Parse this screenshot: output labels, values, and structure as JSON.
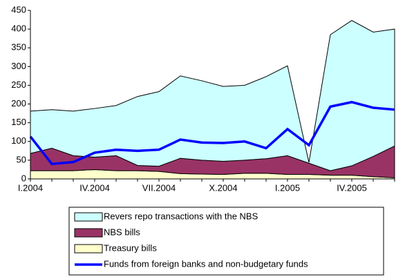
{
  "chart_data": {
    "type": "stacked-area-line",
    "categories": [
      "I.2004",
      null,
      null,
      "IV.2004",
      null,
      null,
      "VII.2004",
      null,
      null,
      "X.2004",
      null,
      null,
      "I.2005",
      null,
      null,
      "IV.2005",
      null,
      null
    ],
    "series": [
      {
        "name": "Treasury bills",
        "color": "#ffffcc",
        "kind": "area",
        "values": [
          22,
          22,
          22,
          25,
          22,
          22,
          20,
          14,
          13,
          12,
          15,
          15,
          12,
          12,
          10,
          10,
          6,
          3
        ]
      },
      {
        "name": "NBS bills",
        "color": "#993366",
        "kind": "area",
        "values": [
          46,
          60,
          40,
          33,
          40,
          14,
          14,
          41,
          37,
          35,
          35,
          39,
          50,
          30,
          12,
          25,
          54,
          85
        ]
      },
      {
        "name": "Revers repo transactions with the NBS",
        "color": "#ccffff",
        "kind": "area",
        "values": [
          113,
          103,
          119,
          130,
          134,
          184,
          199,
          220,
          212,
          200,
          200,
          219,
          240,
          2,
          363,
          388,
          332,
          312
        ]
      },
      {
        "name": "Funds from foreign banks and non-budgetary funds",
        "color": "#0000ff",
        "kind": "line",
        "values": [
          113,
          40,
          45,
          70,
          78,
          75,
          78,
          105,
          97,
          96,
          100,
          82,
          133,
          90,
          193,
          205,
          190,
          185
        ]
      }
    ],
    "ylim": [
      0,
      450
    ],
    "yticks": [
      0,
      50,
      100,
      150,
      200,
      250,
      300,
      350,
      400,
      450
    ]
  }
}
